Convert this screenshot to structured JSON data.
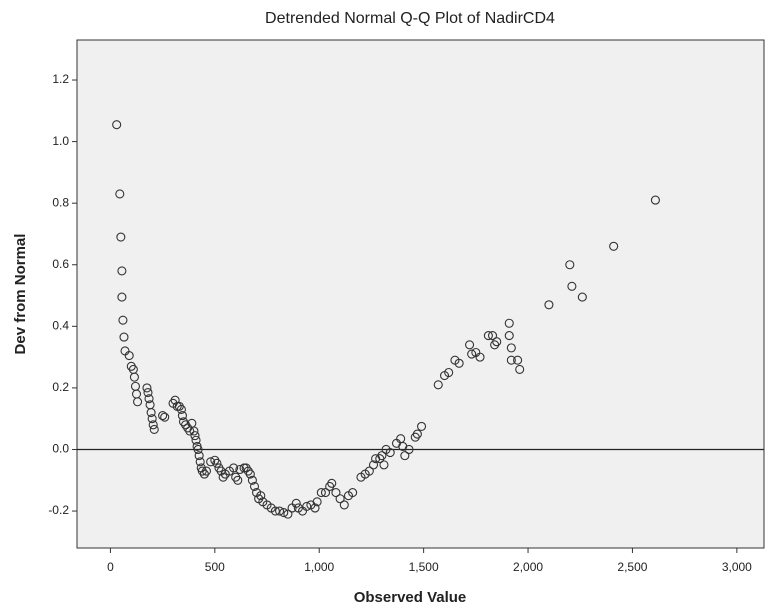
{
  "chart_data": {
    "type": "scatter",
    "title": "Detrended Normal Q-Q Plot of NadirCD4",
    "x_label": "Observed Value",
    "y_label": "Dev from Normal",
    "xlim": [
      -160,
      3130
    ],
    "ylim": [
      -0.32,
      1.33
    ],
    "xticks": [
      0,
      500,
      {
        "value": 1000,
        "label": "1,000"
      },
      {
        "value": 1500,
        "label": "1,500"
      },
      {
        "value": 2000,
        "label": "2,000"
      },
      {
        "value": 2500,
        "label": "2,500"
      },
      {
        "value": 3000,
        "label": "3,000"
      }
    ],
    "yticks": [
      -0.2,
      {
        "value": 0,
        "label": "0.0"
      },
      0.2,
      0.4,
      0.6,
      0.8,
      {
        "value": 1,
        "label": "1.0"
      },
      1.2
    ],
    "reference_line": 0,
    "color": "#333333",
    "background": "#f0f0f0",
    "series": [
      {
        "name": "NadirCD4",
        "x": [
          30,
          45,
          50,
          55,
          55,
          60,
          65,
          70,
          90,
          100,
          110,
          115,
          120,
          125,
          130,
          175,
          180,
          185,
          190,
          195,
          200,
          205,
          210,
          250,
          260,
          300,
          310,
          320,
          330,
          340,
          345,
          350,
          360,
          370,
          380,
          390,
          400,
          405,
          410,
          415,
          420,
          425,
          430,
          435,
          440,
          450,
          460,
          480,
          500,
          510,
          520,
          530,
          540,
          550,
          570,
          590,
          600,
          610,
          620,
          640,
          650,
          660,
          670,
          680,
          690,
          700,
          710,
          720,
          730,
          750,
          770,
          790,
          810,
          830,
          850,
          870,
          890,
          900,
          920,
          940,
          960,
          980,
          990,
          1010,
          1030,
          1050,
          1060,
          1080,
          1100,
          1120,
          1140,
          1160,
          1200,
          1220,
          1240,
          1260,
          1270,
          1290,
          1300,
          1310,
          1320,
          1340,
          1370,
          1390,
          1400,
          1410,
          1430,
          1460,
          1470,
          1490,
          1570,
          1600,
          1620,
          1650,
          1670,
          1720,
          1730,
          1750,
          1770,
          1810,
          1830,
          1840,
          1850,
          1910,
          1910,
          1920,
          1920,
          1950,
          1960,
          2100,
          2200,
          2210,
          2260,
          2410,
          2610
        ],
        "values": [
          1.055,
          0.83,
          0.69,
          0.58,
          0.495,
          0.42,
          0.365,
          0.32,
          0.305,
          0.27,
          0.26,
          0.235,
          0.205,
          0.18,
          0.155,
          0.2,
          0.185,
          0.165,
          0.145,
          0.12,
          0.1,
          0.08,
          0.065,
          0.11,
          0.105,
          0.15,
          0.16,
          0.14,
          0.14,
          0.13,
          0.11,
          0.09,
          0.08,
          0.07,
          0.06,
          0.085,
          0.06,
          0.045,
          0.03,
          0.01,
          0.0,
          -0.02,
          -0.04,
          -0.06,
          -0.07,
          -0.08,
          -0.07,
          -0.04,
          -0.035,
          -0.045,
          -0.06,
          -0.07,
          -0.09,
          -0.08,
          -0.07,
          -0.06,
          -0.09,
          -0.1,
          -0.065,
          -0.06,
          -0.06,
          -0.07,
          -0.08,
          -0.1,
          -0.12,
          -0.14,
          -0.16,
          -0.15,
          -0.17,
          -0.18,
          -0.19,
          -0.2,
          -0.2,
          -0.205,
          -0.21,
          -0.19,
          -0.175,
          -0.19,
          -0.2,
          -0.185,
          -0.18,
          -0.19,
          -0.17,
          -0.14,
          -0.14,
          -0.12,
          -0.11,
          -0.14,
          -0.16,
          -0.18,
          -0.15,
          -0.14,
          -0.09,
          -0.08,
          -0.07,
          -0.05,
          -0.03,
          -0.03,
          -0.02,
          -0.05,
          0.0,
          -0.01,
          0.02,
          0.035,
          0.01,
          -0.02,
          0.0,
          0.04,
          0.05,
          0.075,
          0.21,
          0.24,
          0.25,
          0.29,
          0.28,
          0.34,
          0.31,
          0.315,
          0.3,
          0.37,
          0.37,
          0.34,
          0.35,
          0.41,
          0.37,
          0.33,
          0.29,
          0.29,
          0.26,
          0.47,
          0.6,
          0.53,
          0.495,
          0.66,
          0.81
        ]
      }
    ]
  }
}
